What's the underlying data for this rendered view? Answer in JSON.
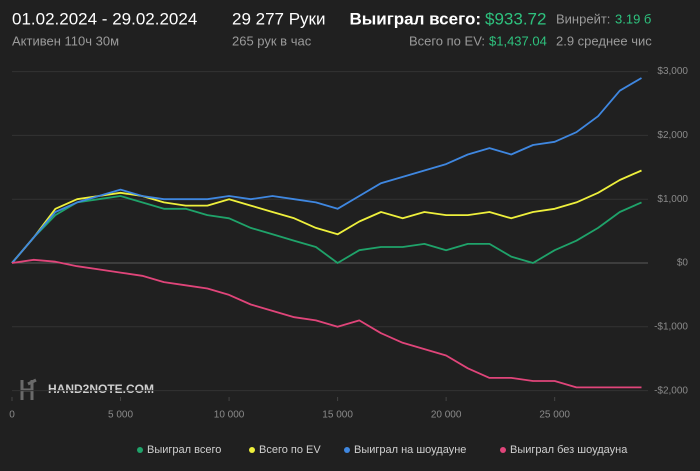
{
  "header": {
    "period": "01.02.2024 - 29.02.2024",
    "active": "Активен 110ч 30м",
    "hands": "29 277 Руки",
    "hands_per_hour": "265 рук в час",
    "won_label": "Выиграл всего:",
    "won_value": "$933.72",
    "ev_label": "Всего по EV:",
    "ev_value": "$1,437.04",
    "winrate_label": "Винрейт:",
    "winrate_value": "3.19 б",
    "average": "2.9 среднее чис"
  },
  "logo": "HAND2NOTE.COM",
  "chart_data": {
    "type": "line",
    "x": [
      0,
      1000,
      2000,
      3000,
      4000,
      5000,
      6000,
      7000,
      8000,
      9000,
      10000,
      11000,
      12000,
      13000,
      14000,
      15000,
      16000,
      17000,
      18000,
      19000,
      20000,
      21000,
      22000,
      23000,
      24000,
      25000,
      26000,
      27000,
      28000,
      29000
    ],
    "series": [
      {
        "name": "Выиграл всего",
        "color": "#1fa36a",
        "values": [
          0,
          400,
          750,
          950,
          1000,
          1050,
          950,
          850,
          850,
          750,
          700,
          550,
          450,
          350,
          250,
          0,
          200,
          250,
          250,
          300,
          200,
          300,
          300,
          100,
          0,
          200,
          350,
          550,
          800,
          950
        ]
      },
      {
        "name": "Всего по EV",
        "color": "#eef03c",
        "values": [
          0,
          400,
          850,
          1000,
          1050,
          1100,
          1050,
          950,
          900,
          900,
          1000,
          900,
          800,
          700,
          550,
          450,
          650,
          800,
          700,
          800,
          750,
          750,
          800,
          700,
          800,
          850,
          950,
          1100,
          1300,
          1450
        ]
      },
      {
        "name": "Выиграл на шоудауне",
        "color": "#3f87e0",
        "values": [
          0,
          400,
          800,
          950,
          1050,
          1150,
          1050,
          1000,
          1000,
          1000,
          1050,
          1000,
          1050,
          1000,
          950,
          850,
          1050,
          1250,
          1350,
          1450,
          1550,
          1700,
          1800,
          1700,
          1850,
          1900,
          2050,
          2300,
          2700,
          2900
        ]
      },
      {
        "name": "Выиграл без шоудауна",
        "color": "#e0457a",
        "values": [
          0,
          50,
          20,
          -50,
          -100,
          -150,
          -200,
          -300,
          -350,
          -400,
          -500,
          -650,
          -750,
          -850,
          -900,
          -1000,
          -900,
          -1100,
          -1250,
          -1350,
          -1450,
          -1650,
          -1800,
          -1800,
          -1850,
          -1850,
          -1950,
          -1950,
          -1950,
          -1950
        ]
      }
    ],
    "xlim": [
      0,
      29300
    ],
    "ylim": [
      -2100,
      3150
    ],
    "xticks": [
      0,
      {
        "value": 5000,
        "label": "5 000"
      },
      {
        "value": 10000,
        "label": "10 000"
      },
      {
        "value": 15000,
        "label": "15 000"
      },
      {
        "value": 20000,
        "label": "20 000"
      },
      {
        "value": 25000,
        "label": "25 000"
      }
    ],
    "yticks": [
      {
        "value": -2000,
        "label": "-$2,000"
      },
      {
        "value": -1000,
        "label": "-$1,000"
      },
      {
        "value": 0,
        "label": "$0"
      },
      {
        "value": 1000,
        "label": "$1,000"
      },
      {
        "value": 2000,
        "label": "$2,000"
      },
      {
        "value": 3000,
        "label": "$3,000"
      }
    ],
    "grid": true,
    "legend": "bottom"
  }
}
